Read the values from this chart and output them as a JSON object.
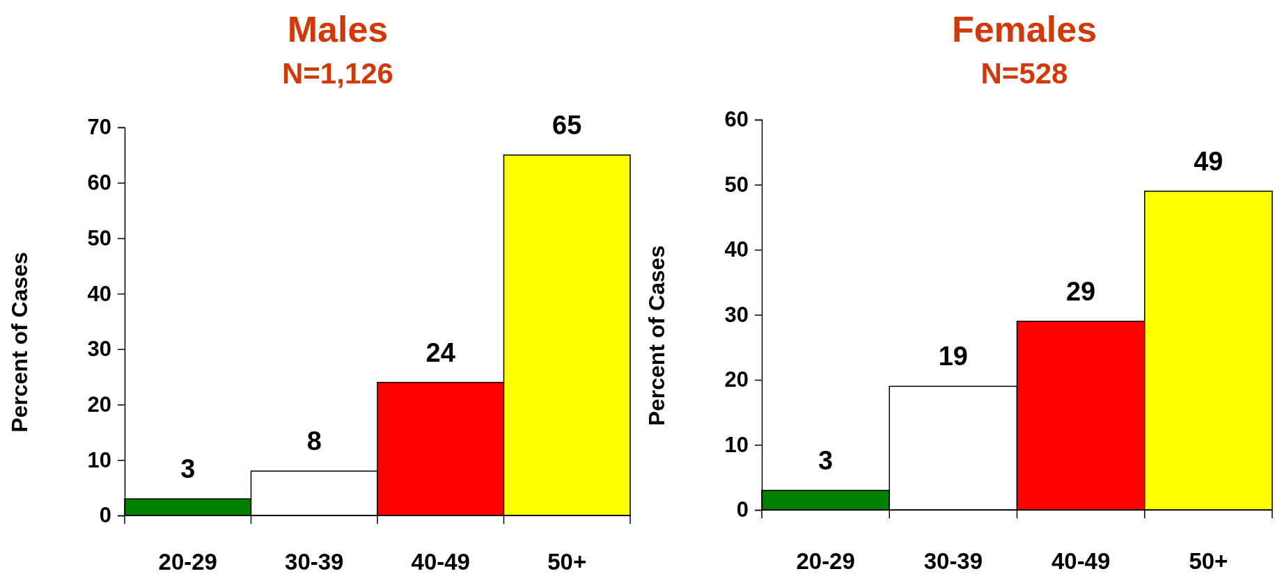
{
  "chart_data": [
    {
      "type": "bar",
      "title": "Males",
      "subtitle": "N=1,126",
      "ylabel": "Percent of Cases",
      "categories": [
        "20-29",
        "30-39",
        "40-49",
        "50+"
      ],
      "values": [
        3,
        8,
        24,
        65
      ],
      "colors": [
        "#008000",
        "#ffffff",
        "#ff0000",
        "#ffff00"
      ],
      "ylim": [
        0,
        70
      ],
      "yticks": [
        0,
        10,
        20,
        30,
        40,
        50,
        60,
        70
      ],
      "data_labels": true
    },
    {
      "type": "bar",
      "title": "Females",
      "subtitle": "N=528",
      "ylabel": "Percent of Cases",
      "categories": [
        "20-29",
        "30-39",
        "40-49",
        "50+"
      ],
      "values": [
        3,
        19,
        29,
        49
      ],
      "colors": [
        "#008000",
        "#ffffff",
        "#ff0000",
        "#ffff00"
      ],
      "ylim": [
        0,
        60
      ],
      "yticks": [
        0,
        10,
        20,
        30,
        40,
        50,
        60
      ],
      "data_labels": true
    }
  ]
}
